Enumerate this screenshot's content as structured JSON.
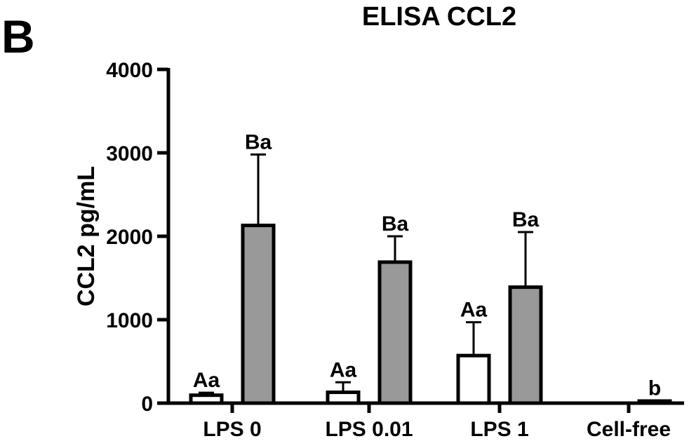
{
  "panel_label": "B",
  "chart_data": {
    "type": "bar",
    "title": "ELISA CCL2",
    "xlabel": "",
    "ylabel": "CCL2 pg/mL",
    "ylim": [
      0,
      4000
    ],
    "yticks": [
      0,
      1000,
      2000,
      3000,
      4000
    ],
    "grid": false,
    "categories": [
      "LPS 0",
      "LPS 0.01",
      "LPS 1",
      "Cell-free"
    ],
    "series": [
      {
        "color": "#ffffff",
        "values": [
          95,
          130,
          570,
          null
        ],
        "errors": [
          30,
          120,
          400,
          null
        ],
        "labels": [
          "Aa",
          "Aa",
          "Aa",
          ""
        ]
      },
      {
        "color": "#999999",
        "values": [
          2130,
          1690,
          1390,
          25
        ],
        "errors": [
          850,
          310,
          660,
          5
        ],
        "labels": [
          "Ba",
          "Ba",
          "Ba",
          "b"
        ]
      }
    ]
  }
}
